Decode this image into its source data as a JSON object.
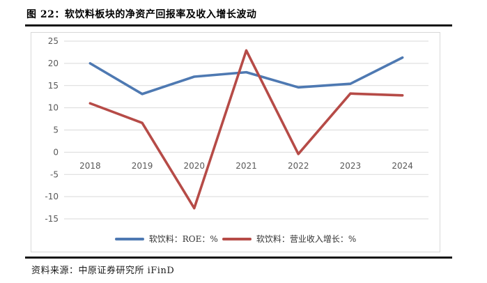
{
  "header": {
    "title": "图 22：软饮料板块的净资产回报率及收入增长波动"
  },
  "footer": {
    "source": "资料来源：中原证券研究所 iFinD"
  },
  "chart_data": {
    "type": "line",
    "title": "图 22：软饮料板块的净资产回报率及收入增长波动",
    "categories": [
      "2018",
      "2019",
      "2020",
      "2021",
      "2022",
      "2023",
      "2024"
    ],
    "series": [
      {
        "name": "软饮料：ROE：%",
        "color": "#4e79b2",
        "values": [
          20.0,
          13.1,
          17.0,
          18.0,
          14.6,
          15.4,
          21.3
        ]
      },
      {
        "name": "软饮料：营业收入增长：%",
        "color": "#b64b47",
        "values": [
          11.0,
          6.6,
          -12.6,
          22.9,
          -0.4,
          13.2,
          12.8
        ]
      }
    ],
    "xlabel": "",
    "ylabel": "",
    "ylim": [
      -15,
      25
    ],
    "ytick_step": 5,
    "grid": true,
    "grid_color": "#d9d9d9",
    "tick_label_color": "#595959",
    "legend_position": "bottom"
  }
}
